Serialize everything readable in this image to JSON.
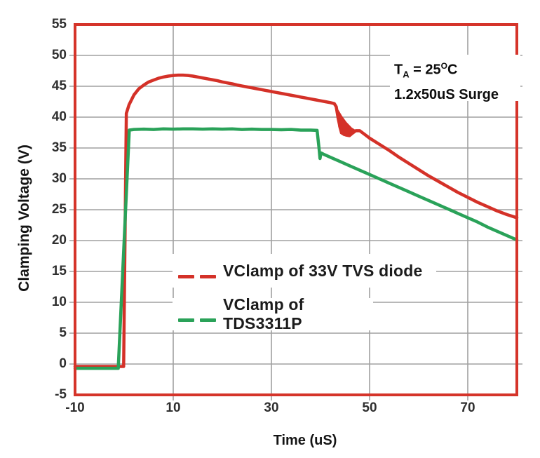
{
  "colors": {
    "plot_border": "#d5342a",
    "gridline": "#a0a0a0",
    "red_series": "#d43128",
    "green_series": "#2aa259",
    "tick_text": "#2f2f2f",
    "label_text": "#141414",
    "background": "#ffffff"
  },
  "chart_data": {
    "type": "line",
    "title": "",
    "xlabel": "Time (uS)",
    "ylabel": "Clamping Voltage (V)",
    "xlim": [
      -10,
      80
    ],
    "ylim": [
      -5,
      55
    ],
    "grid": "on",
    "x_tick_values": [
      -10,
      10,
      30,
      50,
      70
    ],
    "x_tick_labels": [
      "-10",
      "10",
      "30",
      "50",
      "70"
    ],
    "y_tick_values": [
      55,
      50,
      45,
      40,
      35,
      30,
      25,
      20,
      15,
      10,
      5,
      0,
      -5
    ],
    "y_tick_labels": [
      "55",
      "50",
      "45",
      "40",
      "35",
      "30",
      "25",
      "20",
      "15",
      "10",
      "5",
      "0",
      "-5"
    ],
    "x_gridline_values": [
      10,
      30,
      50,
      70
    ],
    "y_gridline_values": [
      50,
      45,
      40,
      35,
      30,
      25,
      20,
      15,
      10,
      5,
      0
    ],
    "annotation": {
      "temp_prefix": "T",
      "temp_sub": "A",
      "temp_mid": " = 25",
      "temp_sup": "O",
      "temp_suffix": "C",
      "line2": "1.2x50uS Surge"
    },
    "legend": {
      "position": "inside-center-left",
      "entries": [
        {
          "label": "VClamp of 33V TVS diode",
          "color": "#d43128"
        },
        {
          "label": "VClamp of TDS3311P",
          "color": "#2aa259"
        }
      ]
    },
    "series": [
      {
        "name": "VClamp of 33V TVS diode",
        "color": "#d43128",
        "points": [
          [
            -10,
            -0.4
          ],
          [
            -5,
            -0.4
          ],
          [
            -0.1,
            -0.4
          ],
          [
            0.45,
            40.6
          ],
          [
            1,
            42.0
          ],
          [
            2,
            43.6
          ],
          [
            3,
            44.6
          ],
          [
            4,
            45.2
          ],
          [
            5,
            45.7
          ],
          [
            6,
            46.0
          ],
          [
            7,
            46.3
          ],
          [
            8,
            46.5
          ],
          [
            9,
            46.65
          ],
          [
            10,
            46.75
          ],
          [
            11,
            46.8
          ],
          [
            12,
            46.8
          ],
          [
            13,
            46.75
          ],
          [
            14,
            46.65
          ],
          [
            15,
            46.5
          ],
          [
            16,
            46.35
          ],
          [
            17,
            46.2
          ],
          [
            18,
            46.05
          ],
          [
            19,
            45.9
          ],
          [
            20,
            45.7
          ],
          [
            21,
            45.55
          ],
          [
            22,
            45.4
          ],
          [
            23,
            45.2
          ],
          [
            24,
            45.05
          ],
          [
            25,
            44.9
          ],
          [
            26,
            44.75
          ],
          [
            27,
            44.6
          ],
          [
            28,
            44.45
          ],
          [
            29,
            44.3
          ],
          [
            30,
            44.15
          ],
          [
            31,
            44.0
          ],
          [
            32,
            43.85
          ],
          [
            33,
            43.7
          ],
          [
            34,
            43.55
          ],
          [
            35,
            43.4
          ],
          [
            36,
            43.25
          ],
          [
            37,
            43.1
          ],
          [
            38,
            42.95
          ],
          [
            39,
            42.8
          ],
          [
            40,
            42.65
          ],
          [
            41,
            42.5
          ],
          [
            42,
            42.35
          ],
          [
            42.8,
            42.2
          ],
          [
            43.2,
            41.7
          ],
          [
            43.6,
            39.8
          ],
          [
            44.0,
            38.3
          ],
          [
            44.5,
            37.5
          ],
          [
            45.2,
            37.1
          ],
          [
            45.9,
            37.0
          ],
          [
            46.5,
            37.4
          ],
          [
            47.2,
            37.8
          ],
          [
            48,
            37.8
          ],
          [
            49,
            37.2
          ],
          [
            50,
            36.6
          ],
          [
            52,
            35.6
          ],
          [
            54,
            34.6
          ],
          [
            56,
            33.5
          ],
          [
            58,
            32.5
          ],
          [
            60,
            31.5
          ],
          [
            62,
            30.5
          ],
          [
            64,
            29.6
          ],
          [
            66,
            28.7
          ],
          [
            68,
            27.8
          ],
          [
            70,
            27.0
          ],
          [
            72,
            26.2
          ],
          [
            74,
            25.5
          ],
          [
            76,
            24.8
          ],
          [
            78,
            24.2
          ],
          [
            80,
            23.7
          ]
        ],
        "notch_fill": [
          [
            43.3,
            41.6
          ],
          [
            43.6,
            38.5
          ],
          [
            44.0,
            37.3
          ],
          [
            44.8,
            36.9
          ],
          [
            45.7,
            37.0
          ],
          [
            46.6,
            37.4
          ],
          [
            47.4,
            37.8
          ],
          [
            46.4,
            38.3
          ],
          [
            45.3,
            39.2
          ],
          [
            44.4,
            40.2
          ],
          [
            43.8,
            41.0
          ]
        ]
      },
      {
        "name": "VClamp of TDS3311P",
        "color": "#2aa259",
        "points": [
          [
            -10,
            -0.7
          ],
          [
            -5,
            -0.7
          ],
          [
            -1.2,
            -0.7
          ],
          [
            1.05,
            37.9
          ],
          [
            2,
            38.0
          ],
          [
            4,
            38.05
          ],
          [
            6,
            38.0
          ],
          [
            8,
            38.1
          ],
          [
            10,
            38.05
          ],
          [
            12,
            38.1
          ],
          [
            14,
            38.1
          ],
          [
            16,
            38.05
          ],
          [
            18,
            38.1
          ],
          [
            20,
            38.05
          ],
          [
            22,
            38.1
          ],
          [
            24,
            38.0
          ],
          [
            26,
            38.05
          ],
          [
            28,
            38.0
          ],
          [
            30,
            38.0
          ],
          [
            32,
            37.95
          ],
          [
            34,
            38.0
          ],
          [
            36,
            37.9
          ],
          [
            38,
            37.9
          ],
          [
            39.3,
            37.85
          ],
          [
            39.7,
            35.0
          ],
          [
            39.9,
            33.3
          ],
          [
            40.1,
            34.2
          ],
          [
            40.6,
            34.0
          ],
          [
            42,
            33.5
          ],
          [
            44,
            32.8
          ],
          [
            46,
            32.1
          ],
          [
            48,
            31.4
          ],
          [
            50,
            30.7
          ],
          [
            52,
            30.0
          ],
          [
            54,
            29.3
          ],
          [
            56,
            28.6
          ],
          [
            58,
            27.9
          ],
          [
            60,
            27.2
          ],
          [
            62,
            26.5
          ],
          [
            64,
            25.8
          ],
          [
            66,
            25.1
          ],
          [
            68,
            24.4
          ],
          [
            70,
            23.7
          ],
          [
            72,
            23.0
          ],
          [
            74,
            22.2
          ],
          [
            76,
            21.5
          ],
          [
            78,
            20.8
          ],
          [
            80,
            20.1
          ]
        ]
      }
    ]
  }
}
